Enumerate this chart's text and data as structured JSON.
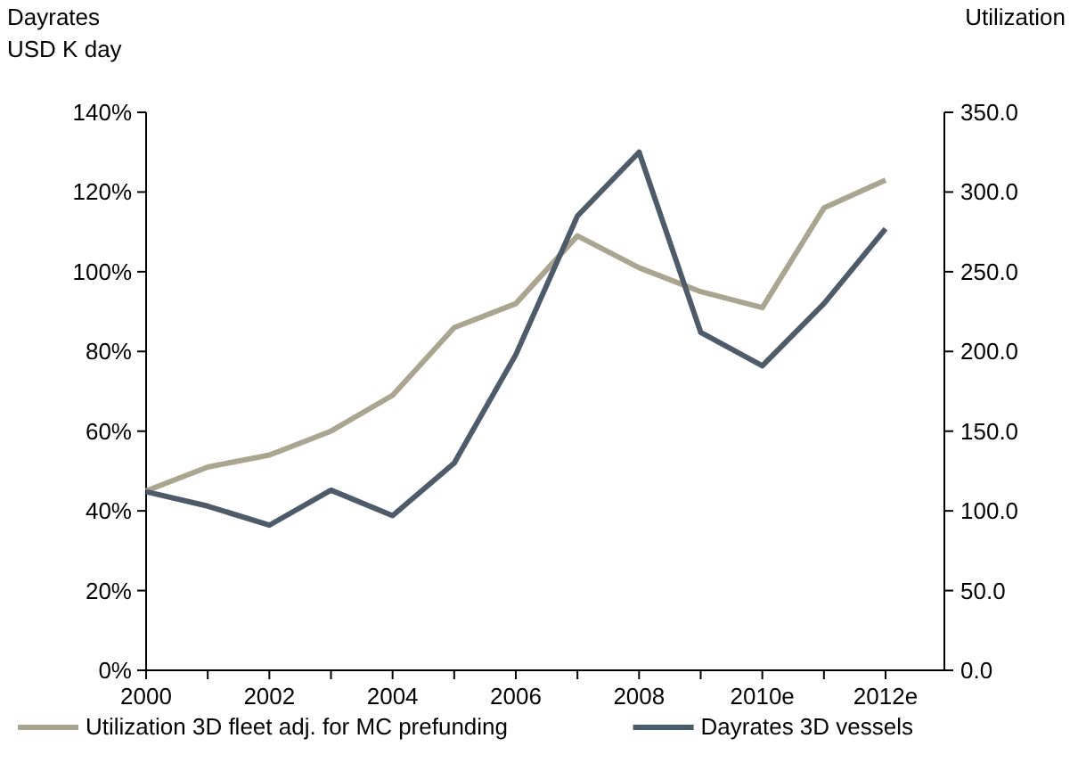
{
  "chart_data": {
    "type": "line",
    "ylabel": "Dayrates\nUSD K day",
    "y2label": "Utilization",
    "categories": [
      "2000",
      null,
      "2002",
      null,
      "2004",
      null,
      "2006",
      null,
      "2008",
      null,
      "2010e",
      null,
      "2012e"
    ],
    "series": [
      {
        "name": "Utilization 3D fleet adj. for MC prefunding",
        "color": "#a9a590",
        "values": [
          45,
          51,
          54,
          60,
          69,
          86,
          92,
          109,
          101,
          95,
          91,
          116,
          123
        ]
      },
      {
        "name": "Dayrates 3D vessels",
        "color": "#4e5b68",
        "axis": "y2",
        "values": [
          112,
          103,
          91,
          113,
          97,
          130,
          198,
          285,
          325,
          212,
          191,
          230,
          277
        ]
      }
    ],
    "ylim": [
      0,
      140
    ],
    "yticks": [
      {
        "value": 0,
        "label": "0%"
      },
      {
        "value": 20,
        "label": "20%"
      },
      {
        "value": 40,
        "label": "40%"
      },
      {
        "value": 60,
        "label": "60%"
      },
      {
        "value": 80,
        "label": "80%"
      },
      {
        "value": 100,
        "label": "100%"
      },
      {
        "value": 120,
        "label": "120%"
      },
      {
        "value": 140,
        "label": "140%"
      }
    ],
    "y2lim": [
      0,
      350
    ],
    "y2ticks": [
      {
        "value": 0,
        "label": "0.0"
      },
      {
        "value": 50,
        "label": "50.0"
      },
      {
        "value": 100,
        "label": "100.0"
      },
      {
        "value": 150,
        "label": "150.0"
      },
      {
        "value": 200,
        "label": "200.0"
      },
      {
        "value": 250,
        "label": "250.0"
      },
      {
        "value": 300,
        "label": "300.0"
      },
      {
        "value": 350,
        "label": "350.0"
      }
    ],
    "legend": "bottom",
    "line_style": "solid",
    "marker": "none"
  }
}
